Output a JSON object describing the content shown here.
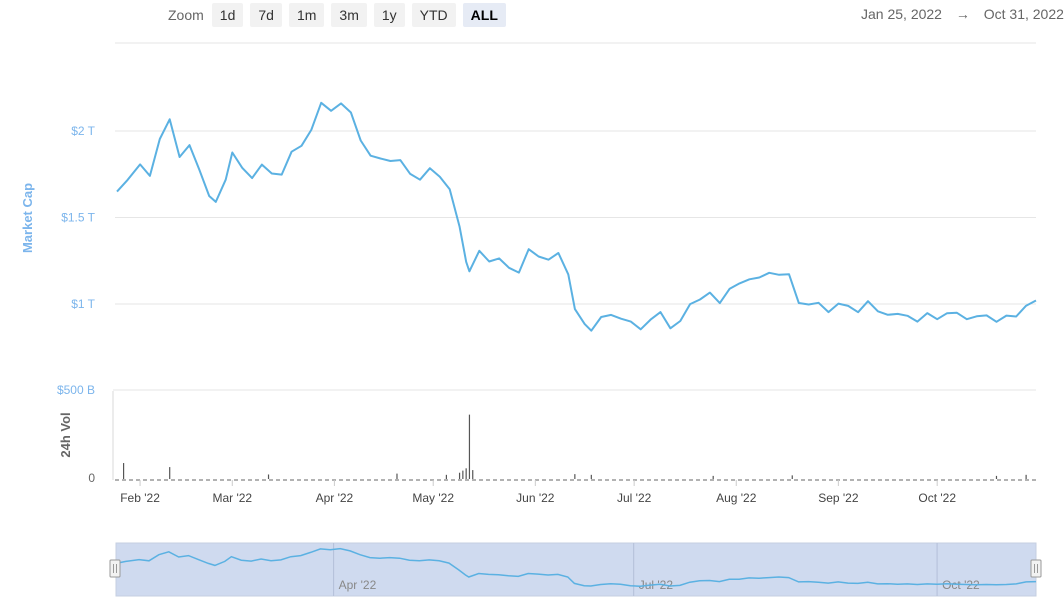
{
  "toolbar": {
    "zoom_label": "Zoom",
    "buttons": [
      "1d",
      "7d",
      "1m",
      "3m",
      "1y",
      "YTD",
      "ALL"
    ],
    "active": "ALL"
  },
  "range": {
    "from": "Jan 25, 2022",
    "arrow": "→",
    "to": "Oct 31, 2022"
  },
  "colors": {
    "line": "#5bb1e2",
    "axis_label": "#7cb5ec",
    "navigator_fill": "#c7d3ec",
    "volume": "#555555"
  },
  "chart_data": [
    {
      "type": "line",
      "title": "",
      "ylabel": "Market Cap",
      "yticks": [
        {
          "value": 1000000000000,
          "label": "$1 T"
        },
        {
          "value": 1500000000000,
          "label": "$1.5 T"
        },
        {
          "value": 2000000000000,
          "label": "$2 T"
        }
      ],
      "ylim": [
        750000000000,
        2500000000000
      ],
      "xlim": [
        "2022-01-25",
        "2022-10-31"
      ],
      "xticks": [
        {
          "date": "2022-02-01",
          "label": "Feb '22"
        },
        {
          "date": "2022-03-01",
          "label": "Mar '22"
        },
        {
          "date": "2022-04-01",
          "label": "Apr '22"
        },
        {
          "date": "2022-05-01",
          "label": "May '22"
        },
        {
          "date": "2022-06-01",
          "label": "Jun '22"
        },
        {
          "date": "2022-07-01",
          "label": "Jul '22"
        },
        {
          "date": "2022-08-01",
          "label": "Aug '22"
        },
        {
          "date": "2022-09-01",
          "label": "Sep '22"
        },
        {
          "date": "2022-10-01",
          "label": "Oct '22"
        }
      ],
      "series": [
        {
          "x": [
            "2022-01-25",
            "2022-01-28",
            "2022-02-01",
            "2022-02-04",
            "2022-02-07",
            "2022-02-10",
            "2022-02-13",
            "2022-02-16",
            "2022-02-19",
            "2022-02-22",
            "2022-02-24",
            "2022-02-27",
            "2022-03-01",
            "2022-03-04",
            "2022-03-07",
            "2022-03-10",
            "2022-03-13",
            "2022-03-16",
            "2022-03-19",
            "2022-03-22",
            "2022-03-25",
            "2022-03-28",
            "2022-03-31",
            "2022-04-03",
            "2022-04-06",
            "2022-04-09",
            "2022-04-12",
            "2022-04-15",
            "2022-04-18",
            "2022-04-21",
            "2022-04-24",
            "2022-04-27",
            "2022-04-30",
            "2022-05-03",
            "2022-05-06",
            "2022-05-09",
            "2022-05-11",
            "2022-05-12",
            "2022-05-15",
            "2022-05-18",
            "2022-05-21",
            "2022-05-24",
            "2022-05-27",
            "2022-05-30",
            "2022-06-02",
            "2022-06-05",
            "2022-06-08",
            "2022-06-11",
            "2022-06-13",
            "2022-06-16",
            "2022-06-18",
            "2022-06-21",
            "2022-06-24",
            "2022-06-27",
            "2022-06-30",
            "2022-07-03",
            "2022-07-06",
            "2022-07-09",
            "2022-07-12",
            "2022-07-15",
            "2022-07-18",
            "2022-07-21",
            "2022-07-24",
            "2022-07-27",
            "2022-07-30",
            "2022-08-02",
            "2022-08-05",
            "2022-08-08",
            "2022-08-11",
            "2022-08-14",
            "2022-08-17",
            "2022-08-20",
            "2022-08-23",
            "2022-08-26",
            "2022-08-29",
            "2022-09-01",
            "2022-09-04",
            "2022-09-07",
            "2022-09-10",
            "2022-09-13",
            "2022-09-16",
            "2022-09-19",
            "2022-09-22",
            "2022-09-25",
            "2022-09-28",
            "2022-10-01",
            "2022-10-04",
            "2022-10-07",
            "2022-10-10",
            "2022-10-13",
            "2022-10-16",
            "2022-10-19",
            "2022-10-22",
            "2022-10-25",
            "2022-10-28",
            "2022-10-31"
          ],
          "values": [
            1650000000000,
            1720000000000,
            1780000000000,
            1740000000000,
            1950000000000,
            2050000000000,
            1870000000000,
            1920000000000,
            1780000000000,
            1650000000000,
            1580000000000,
            1720000000000,
            1880000000000,
            1760000000000,
            1730000000000,
            1800000000000,
            1740000000000,
            1770000000000,
            1880000000000,
            1920000000000,
            2030000000000,
            2150000000000,
            2120000000000,
            2160000000000,
            2080000000000,
            1950000000000,
            1850000000000,
            1830000000000,
            1850000000000,
            1830000000000,
            1760000000000,
            1740000000000,
            1770000000000,
            1740000000000,
            1660000000000,
            1420000000000,
            1250000000000,
            1180000000000,
            1300000000000,
            1270000000000,
            1260000000000,
            1220000000000,
            1200000000000,
            1300000000000,
            1280000000000,
            1250000000000,
            1270000000000,
            1180000000000,
            960000000000,
            880000000000,
            870000000000,
            920000000000,
            950000000000,
            930000000000,
            880000000000,
            860000000000,
            900000000000,
            930000000000,
            870000000000,
            890000000000,
            1000000000000,
            1050000000000,
            1060000000000,
            1020000000000,
            1100000000000,
            1100000000000,
            1150000000000,
            1140000000000,
            1160000000000,
            1180000000000,
            1160000000000,
            1010000000000,
            1020000000000,
            1000000000000,
            970000000000,
            1010000000000,
            970000000000,
            960000000000,
            1000000000000,
            940000000000,
            950000000000,
            930000000000,
            940000000000,
            920000000000,
            940000000000,
            930000000000,
            950000000000,
            930000000000,
            920000000000,
            910000000000,
            920000000000,
            910000000000,
            920000000000,
            940000000000,
            1010000000000,
            1020000000000
          ]
        }
      ]
    },
    {
      "type": "bar",
      "title": "",
      "ylabel": "24h Vol",
      "yticks": [
        {
          "value": 0,
          "label": "0"
        },
        {
          "value": 500000000000,
          "label": "$500 B"
        }
      ],
      "ylim": [
        0,
        500000000000
      ],
      "series": [
        {
          "x": [
            "2022-01-27",
            "2022-02-10",
            "2022-03-12",
            "2022-04-20",
            "2022-05-05",
            "2022-05-09",
            "2022-05-10",
            "2022-05-11",
            "2022-05-12",
            "2022-05-13",
            "2022-06-13",
            "2022-06-18",
            "2022-07-25",
            "2022-08-18",
            "2022-10-19",
            "2022-10-28"
          ],
          "values": [
            85000000000,
            62000000000,
            20000000000,
            25000000000,
            18000000000,
            30000000000,
            42000000000,
            55000000000,
            360000000000,
            45000000000,
            22000000000,
            18000000000,
            12000000000,
            15000000000,
            12000000000,
            18000000000
          ]
        }
      ]
    },
    {
      "type": "area",
      "title": "",
      "xticks": [
        {
          "date": "2022-04-01",
          "label": "Apr '22"
        },
        {
          "date": "2022-07-01",
          "label": "Jul '22"
        },
        {
          "date": "2022-10-01",
          "label": "Oct '22"
        }
      ]
    }
  ]
}
